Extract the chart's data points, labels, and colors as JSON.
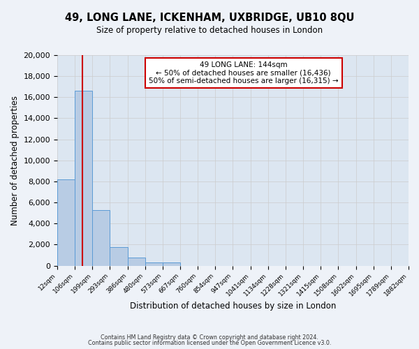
{
  "title_line1": "49, LONG LANE, ICKENHAM, UXBRIDGE, UB10 8QU",
  "title_line2": "Size of property relative to detached houses in London",
  "xlabel": "Distribution of detached houses by size in London",
  "ylabel": "Number of detached properties",
  "bar_values": [
    8200,
    16600,
    5300,
    1750,
    800,
    280,
    300,
    0,
    0,
    0,
    0,
    0,
    0,
    0,
    0,
    0,
    0,
    0,
    0,
    0
  ],
  "bin_labels": [
    "12sqm",
    "106sqm",
    "199sqm",
    "293sqm",
    "386sqm",
    "480sqm",
    "573sqm",
    "667sqm",
    "760sqm",
    "854sqm",
    "947sqm",
    "1041sqm",
    "1134sqm",
    "1228sqm",
    "1321sqm",
    "1415sqm",
    "1508sqm",
    "1602sqm",
    "1695sqm",
    "1789sqm",
    "1882sqm"
  ],
  "bar_color": "#b8cce4",
  "bar_edge_color": "#5b9bd5",
  "red_line_x": 1.44,
  "red_line_color": "#cc0000",
  "annotation_text_line1": "49 LONG LANE: 144sqm",
  "annotation_text_line2": "← 50% of detached houses are smaller (16,436)",
  "annotation_text_line3": "50% of semi-detached houses are larger (16,315) →",
  "annotation_box_color": "#ffffff",
  "annotation_box_edge_color": "#cc0000",
  "ylim": [
    0,
    20000
  ],
  "yticks": [
    0,
    2000,
    4000,
    6000,
    8000,
    10000,
    12000,
    14000,
    16000,
    18000,
    20000
  ],
  "grid_color": "#cccccc",
  "background_color": "#dce6f1",
  "fig_background_color": "#eef2f8",
  "footer_line1": "Contains HM Land Registry data © Crown copyright and database right 2024.",
  "footer_line2": "Contains public sector information licensed under the Open Government Licence v3.0."
}
